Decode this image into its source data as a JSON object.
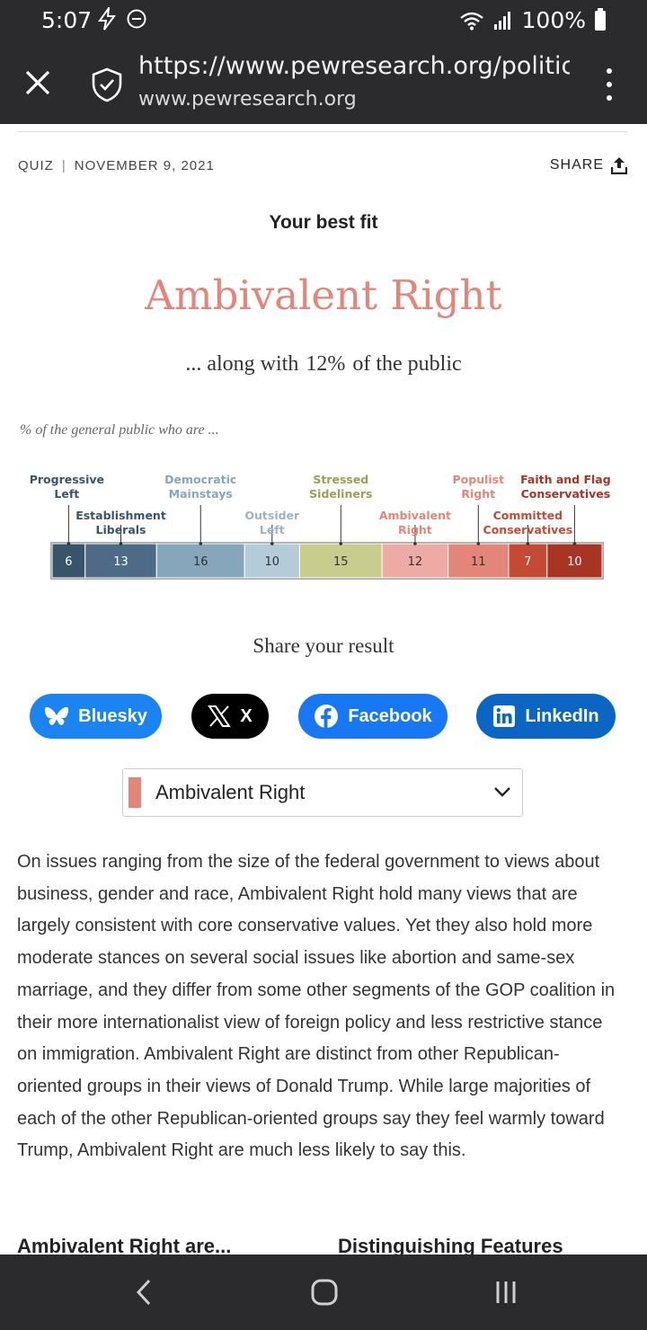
{
  "status_bar": {
    "time": "5:07",
    "battery": "100%"
  },
  "browser": {
    "url": "https://www.pewresearch.org/politics",
    "domain": "www.pewresearch.org"
  },
  "article": {
    "meta_type": "QUIZ",
    "meta_separator": "|",
    "meta_date": "NOVEMBER 9, 2021",
    "share_label": "SHARE"
  },
  "result": {
    "best_fit_label": "Your best fit",
    "typology": "Ambivalent Right",
    "along_prefix": "... along with",
    "along_pct": "12%",
    "along_suffix": "of the public",
    "accent_color": "#e4857a"
  },
  "chart_data": {
    "type": "bar",
    "stacked": true,
    "orientation": "horizontal",
    "title": "% of the general public who are ...",
    "unit": "%",
    "series": [
      {
        "name": "Progressive Left",
        "value": 6,
        "color": "#37546a",
        "label_row": "top"
      },
      {
        "name": "Establishment Liberals",
        "value": 13,
        "color": "#4d6b86",
        "label_row": "bottom"
      },
      {
        "name": "Democratic Mainstays",
        "value": 16,
        "color": "#86a6bc",
        "label_row": "top"
      },
      {
        "name": "Outsider Left",
        "value": 10,
        "color": "#b4cbd9",
        "label_row": "bottom"
      },
      {
        "name": "Stressed Sideliners",
        "value": 15,
        "color": "#c8cc8c",
        "label_row": "top"
      },
      {
        "name": "Ambivalent Right",
        "value": 12,
        "color": "#eeaba5",
        "label_row": "bottom"
      },
      {
        "name": "Populist Right",
        "value": 11,
        "color": "#e4857a",
        "label_row": "top"
      },
      {
        "name": "Committed Conservatives",
        "value": 7,
        "color": "#c44a34",
        "label_row": "bottom"
      },
      {
        "name": "Faith and Flag Conservatives",
        "value": 10,
        "color": "#a83424",
        "label_row": "top"
      }
    ],
    "label_colors": {
      "Progressive Left": "#37546a",
      "Establishment Liberals": "#37546a",
      "Democratic Mainstays": "#86a6bc",
      "Outsider Left": "#9ab4c6",
      "Stressed Sideliners": "#9aa050",
      "Ambivalent Right": "#e4857a",
      "Populist Right": "#e4857a",
      "Committed Conservatives": "#c44a34",
      "Faith and Flag Conservatives": "#a83424"
    },
    "label_lines": {
      "Progressive Left": [
        "Progressive",
        "Left"
      ],
      "Establishment Liberals": [
        "Establishment",
        "Liberals"
      ],
      "Democratic Mainstays": [
        "Democratic",
        "Mainstays"
      ],
      "Outsider Left": [
        "Outsider",
        "Left"
      ],
      "Stressed Sideliners": [
        "Stressed",
        "Sideliners"
      ],
      "Ambivalent Right": [
        "Ambivalent",
        "Right"
      ],
      "Populist Right": [
        "Populist",
        "Right"
      ],
      "Committed Conservatives": [
        "Committed",
        "Conservatives"
      ],
      "Faith and Flag Conservatives": [
        "Faith and Flag",
        "Conservatives"
      ]
    }
  },
  "share": {
    "heading": "Share your result",
    "bluesky": "Bluesky",
    "x": "X",
    "facebook": "Facebook",
    "linkedin": "LinkedIn"
  },
  "select": {
    "value": "Ambivalent Right",
    "swatch_color": "#e4857a"
  },
  "description": "On issues ranging from the size of the federal government to views about business, gender and race, Ambivalent Right hold many views that are largely consistent with core conservative values. Yet they also hold more moderate stances on several social issues like abortion and same-sex marriage, and they differ from some other segments of the GOP coalition in their more internationalist view of foreign policy and less restrictive stance on immigration. Ambivalent Right are distinct from other Republican-oriented groups in their views of Donald Trump. While large majorities of each of the other Republican-oriented groups say they feel warmly toward Trump, Ambivalent Right are much less likely to say this.",
  "subheads": {
    "left": "Ambivalent Right are...",
    "right": "Distinguishing Features"
  }
}
